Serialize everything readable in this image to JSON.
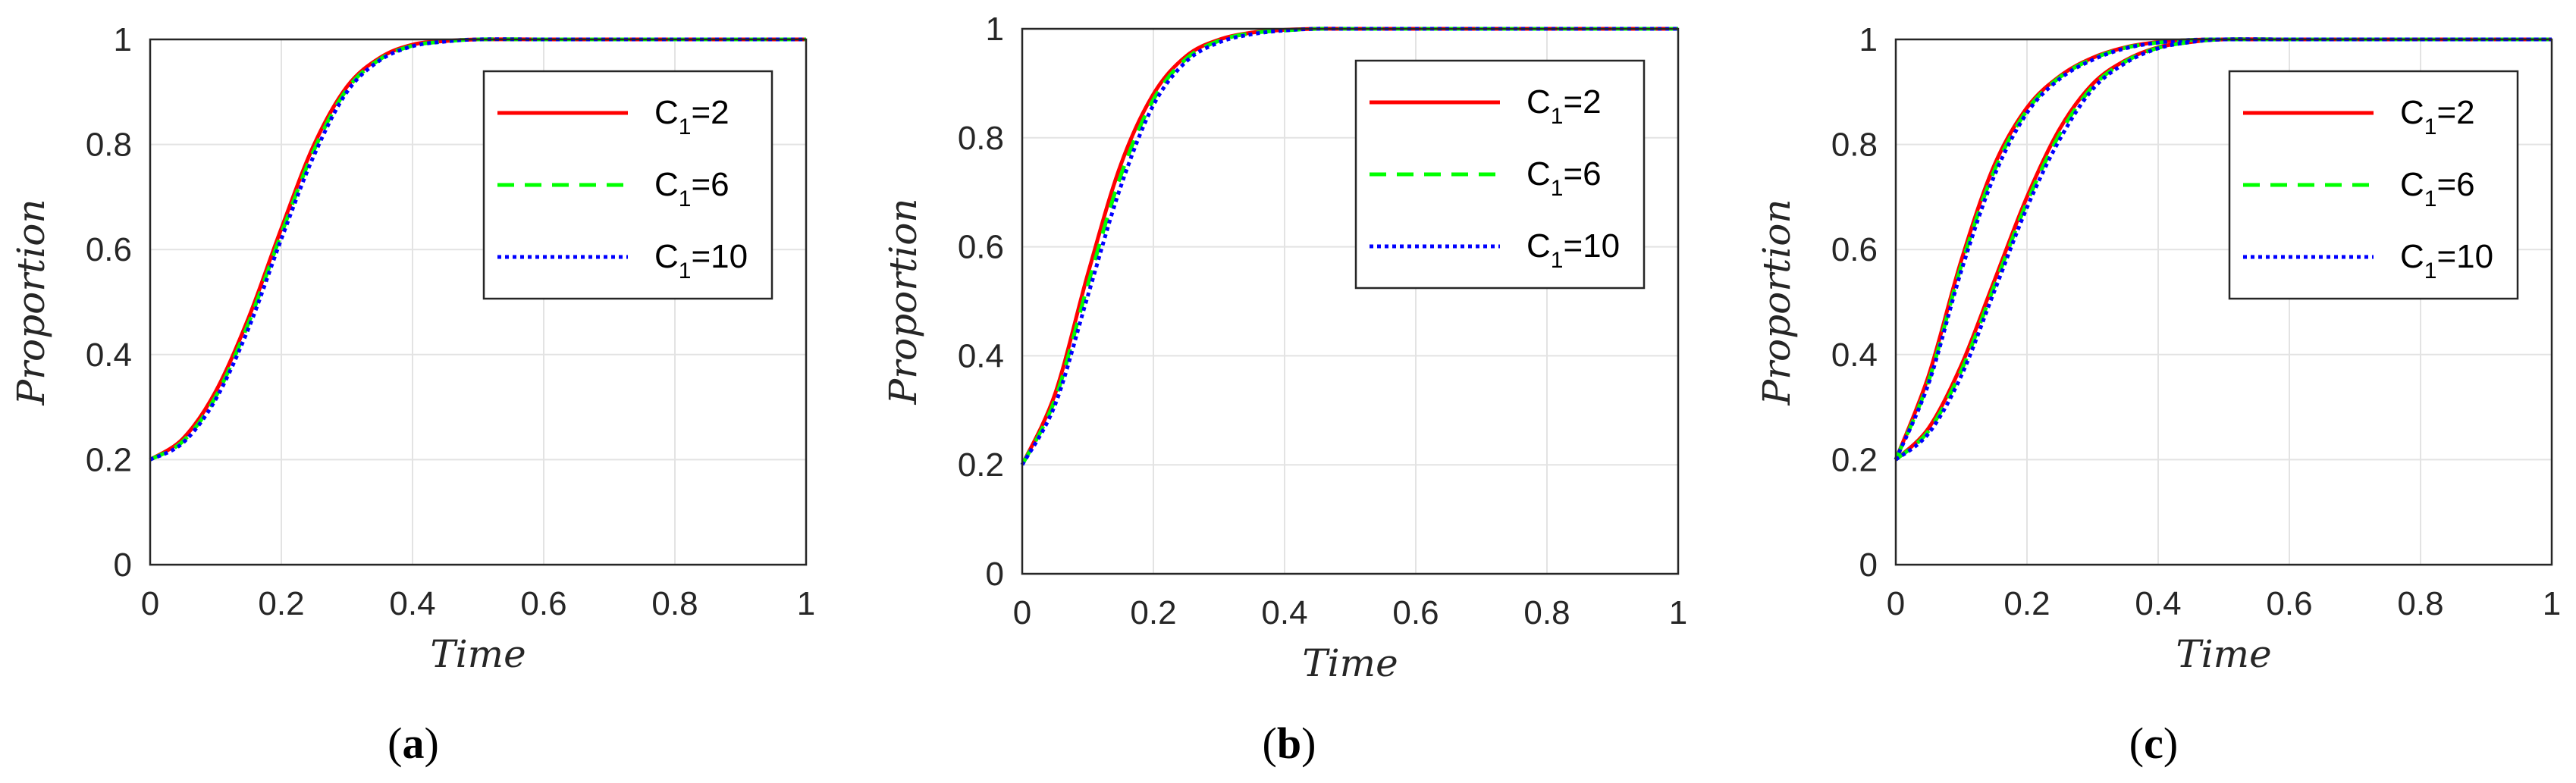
{
  "chart_data": [
    {
      "type": "line",
      "panel_label": "a",
      "xlabel": "Time",
      "ylabel": "Proportion",
      "xlim": [
        0,
        1
      ],
      "ylim": [
        0,
        1
      ],
      "xticks": [
        "0",
        "0.2",
        "0.4",
        "0.6",
        "0.8",
        "1"
      ],
      "yticks": [
        "0",
        "0.2",
        "0.4",
        "0.6",
        "0.8",
        "1"
      ],
      "grid": true,
      "legend_position": "top-right",
      "x": [
        0,
        0.05,
        0.1,
        0.15,
        0.2,
        0.25,
        0.3,
        0.35,
        0.4,
        0.45,
        0.5,
        0.6,
        0.7,
        0.8,
        0.9,
        1.0
      ],
      "series": [
        {
          "name": "C1=2",
          "legend_main": "C",
          "legend_sub": "1",
          "legend_tail": "=2",
          "color": "#ff0000",
          "dash": "solid",
          "values": [
            0.2,
            0.24,
            0.33,
            0.47,
            0.64,
            0.8,
            0.91,
            0.965,
            0.99,
            0.997,
            1.0,
            1.0,
            1.0,
            1.0,
            1.0,
            1.0
          ]
        },
        {
          "name": "C1=6",
          "legend_main": "C",
          "legend_sub": "1",
          "legend_tail": "=6",
          "color": "#00ff00",
          "dash": "dashed",
          "values": [
            0.2,
            0.235,
            0.32,
            0.46,
            0.63,
            0.79,
            0.905,
            0.962,
            0.988,
            0.996,
            1.0,
            1.0,
            1.0,
            1.0,
            1.0,
            1.0
          ]
        },
        {
          "name": "C1=10",
          "legend_main": "C",
          "legend_sub": "1",
          "legend_tail": "=10",
          "color": "#0000ff",
          "dash": "dotted",
          "values": [
            0.2,
            0.232,
            0.315,
            0.45,
            0.62,
            0.78,
            0.9,
            0.96,
            0.987,
            0.996,
            1.0,
            1.0,
            1.0,
            1.0,
            1.0,
            1.0
          ]
        }
      ]
    },
    {
      "type": "line",
      "panel_label": "b",
      "xlabel": "Time",
      "ylabel": "Proportion",
      "xlim": [
        0,
        1
      ],
      "ylim": [
        0,
        1
      ],
      "xticks": [
        "0",
        "0.2",
        "0.4",
        "0.6",
        "0.8",
        "1"
      ],
      "yticks": [
        "0",
        "0.2",
        "0.4",
        "0.6",
        "0.8",
        "1"
      ],
      "grid": true,
      "legend_position": "top-right",
      "x": [
        0,
        0.05,
        0.1,
        0.15,
        0.2,
        0.25,
        0.3,
        0.35,
        0.4,
        0.45,
        0.5,
        0.6,
        0.7,
        0.8,
        0.9,
        1.0
      ],
      "series": [
        {
          "name": "C1=2",
          "legend_main": "C",
          "legend_sub": "1",
          "legend_tail": "=2",
          "color": "#ff0000",
          "dash": "solid",
          "values": [
            0.2,
            0.33,
            0.55,
            0.75,
            0.88,
            0.95,
            0.98,
            0.993,
            0.998,
            1.0,
            1.0,
            1.0,
            1.0,
            1.0,
            1.0,
            1.0
          ]
        },
        {
          "name": "C1=6",
          "legend_main": "C",
          "legend_sub": "1",
          "legend_tail": "=6",
          "color": "#00ff00",
          "dash": "dashed",
          "values": [
            0.2,
            0.32,
            0.53,
            0.73,
            0.87,
            0.945,
            0.978,
            0.992,
            0.997,
            1.0,
            1.0,
            1.0,
            1.0,
            1.0,
            1.0,
            1.0
          ]
        },
        {
          "name": "C1=10",
          "legend_main": "C",
          "legend_sub": "1",
          "legend_tail": "=10",
          "color": "#0000ff",
          "dash": "dotted",
          "values": [
            0.2,
            0.31,
            0.51,
            0.71,
            0.86,
            0.94,
            0.975,
            0.99,
            0.997,
            1.0,
            1.0,
            1.0,
            1.0,
            1.0,
            1.0,
            1.0
          ]
        }
      ]
    },
    {
      "type": "line",
      "panel_label": "c",
      "xlabel": "Time",
      "ylabel": "Proportion",
      "xlim": [
        0,
        1
      ],
      "ylim": [
        0,
        1
      ],
      "xticks": [
        "0",
        "0.2",
        "0.4",
        "0.6",
        "0.8",
        "1"
      ],
      "yticks": [
        "0",
        "0.2",
        "0.4",
        "0.6",
        "0.8",
        "1"
      ],
      "grid": true,
      "legend_position": "top-right",
      "x": [
        0,
        0.05,
        0.1,
        0.15,
        0.2,
        0.25,
        0.3,
        0.35,
        0.4,
        0.45,
        0.5,
        0.6,
        0.7,
        0.8,
        0.9,
        1.0
      ],
      "series": [
        {
          "name": "C1=2",
          "legend_main": "C",
          "legend_sub": "1",
          "legend_tail": "=2",
          "color": "#ff0000",
          "dash": "solid",
          "values": [
            0.2,
            0.36,
            0.58,
            0.76,
            0.87,
            0.93,
            0.965,
            0.985,
            0.995,
            0.999,
            1.0,
            1.0,
            1.0,
            1.0,
            1.0,
            1.0
          ],
          "values_secondary": [
            0.2,
            0.26,
            0.38,
            0.54,
            0.7,
            0.83,
            0.915,
            0.96,
            0.985,
            0.995,
            1.0,
            1.0,
            1.0,
            1.0,
            1.0,
            1.0
          ]
        },
        {
          "name": "C1=6",
          "legend_main": "C",
          "legend_sub": "1",
          "legend_tail": "=6",
          "color": "#00ff00",
          "dash": "dashed",
          "values": [
            0.2,
            0.35,
            0.57,
            0.75,
            0.865,
            0.928,
            0.963,
            0.984,
            0.994,
            0.999,
            1.0,
            1.0,
            1.0,
            1.0,
            1.0,
            1.0
          ],
          "values_secondary": [
            0.2,
            0.255,
            0.37,
            0.53,
            0.69,
            0.82,
            0.91,
            0.958,
            0.984,
            0.995,
            1.0,
            1.0,
            1.0,
            1.0,
            1.0,
            1.0
          ]
        },
        {
          "name": "C1=10",
          "legend_main": "C",
          "legend_sub": "1",
          "legend_tail": "=10",
          "color": "#0000ff",
          "dash": "dotted",
          "values": [
            0.2,
            0.345,
            0.56,
            0.74,
            0.86,
            0.925,
            0.961,
            0.983,
            0.994,
            0.999,
            1.0,
            1.0,
            1.0,
            1.0,
            1.0,
            1.0
          ],
          "values_secondary": [
            0.2,
            0.25,
            0.36,
            0.52,
            0.68,
            0.81,
            0.905,
            0.955,
            0.983,
            0.995,
            1.0,
            1.0,
            1.0,
            1.0,
            1.0,
            1.0
          ]
        }
      ]
    }
  ]
}
